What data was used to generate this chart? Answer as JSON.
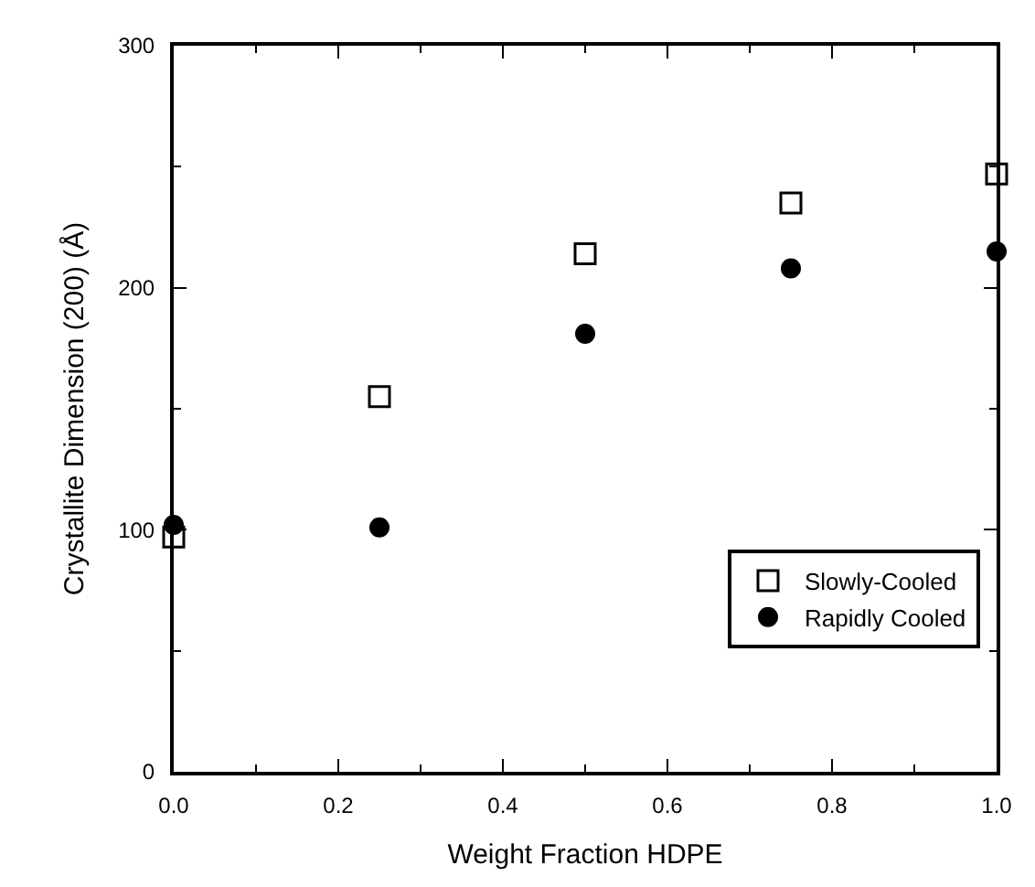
{
  "chart_data": {
    "type": "scatter",
    "xlabel": "Weight Fraction HDPE",
    "ylabel": "Crystallite Dimension (200) (Å)",
    "x": [
      0.0,
      0.25,
      0.5,
      0.75,
      1.0
    ],
    "series": [
      {
        "name": "Slowly-Cooled",
        "color": "#000000",
        "marker": "square-open",
        "values": [
          97,
          155,
          214,
          235,
          247
        ]
      },
      {
        "name": "Rapidly Cooled",
        "color": "#000000",
        "marker": "circle",
        "values": [
          102,
          101,
          181,
          208,
          215
        ]
      }
    ],
    "xlim": [
      0.0,
      1.0
    ],
    "xticks": [
      {
        "value": 0.0,
        "label": "0.0"
      },
      0.2,
      0.4,
      0.6,
      0.8,
      {
        "value": 1.0,
        "label": "1.0"
      }
    ],
    "ylim": [
      0,
      300
    ],
    "yticks": [
      0,
      100,
      200,
      300
    ],
    "grid": false,
    "legend": "bottom right"
  }
}
